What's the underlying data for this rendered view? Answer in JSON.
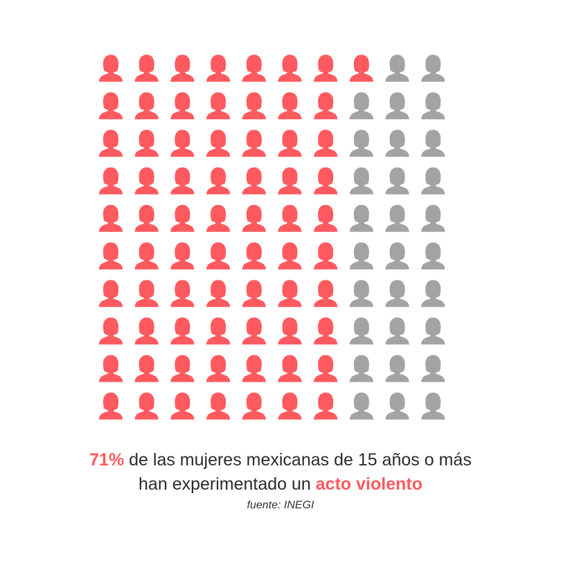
{
  "chart_data": {
    "type": "pictogram",
    "total": 100,
    "highlighted": 71,
    "percent_label": "71%",
    "colors": {
      "highlighted": "#ff5a5f",
      "rest": "#a3a3a3"
    },
    "icon": "woman-icon"
  },
  "caption": {
    "line1_rest": " de las mujeres mexicanas de 15 años o más",
    "line2_start": "han experimentado un ",
    "line2_highlight": "acto violento",
    "source": "fuente: INEGI"
  }
}
